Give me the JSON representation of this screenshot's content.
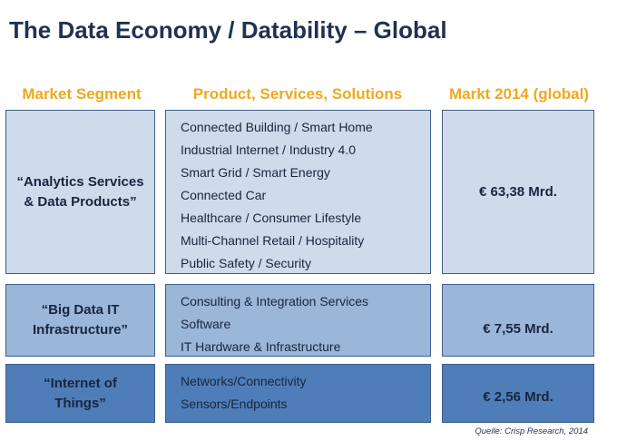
{
  "title": "The Data Economy / Datability – Global",
  "headers": {
    "segment": "Market Segment",
    "products": "Product, Services, Solutions",
    "market": "Markt 2014 (global)"
  },
  "rows": [
    {
      "segment_line1": "“Analytics Services",
      "segment_line2": "& Data Products”",
      "items": [
        "Connected Building / Smart Home",
        "Industrial Internet / Industry 4.0",
        "Smart Grid / Smart Energy",
        "Connected Car",
        "Healthcare / Consumer Lifestyle",
        "Multi-Channel Retail / Hospitality",
        "Public Safety / Security"
      ],
      "market": "€ 63,38 Mrd."
    },
    {
      "segment_line1": "“Big Data IT",
      "segment_line2": "Infrastructure”",
      "items": [
        "Consulting & Integration Services",
        "Software",
        "IT Hardware & Infrastructure"
      ],
      "market": "€ 7,55 Mrd."
    },
    {
      "segment_line1": "“Internet of",
      "segment_line2": "Things”",
      "items": [
        "Networks/Connectivity",
        "Sensors/Endpoints"
      ],
      "market": "€ 2,56 Mrd."
    }
  ],
  "source": "Quelle: Crisp Research, 2014",
  "colors": {
    "title": "#1f3251",
    "header": "#f0a81c",
    "row1_fill": "#cfdbeb",
    "row2_fill": "#9ab6d9",
    "row3_fill": "#4f7db8",
    "border": "#3f5e8a"
  }
}
